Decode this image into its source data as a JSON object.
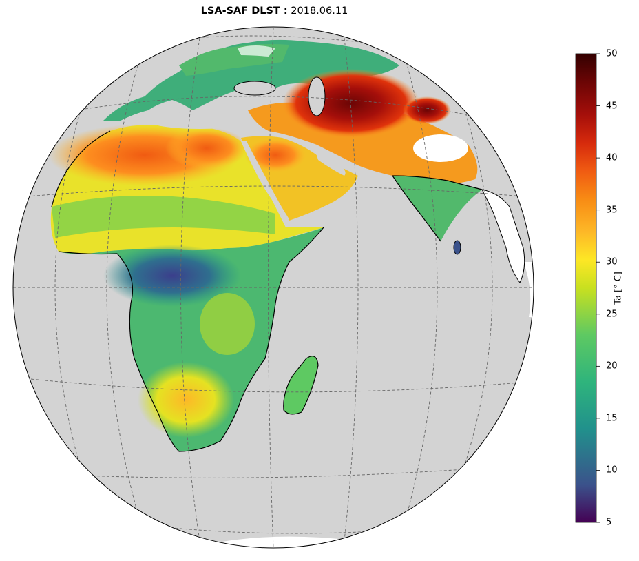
{
  "title": {
    "bold_part": "LSA-SAF DLST :",
    "date": "2018.06.11"
  },
  "colorbar": {
    "label": "Ta [° C]",
    "min": 5,
    "max": 50,
    "ticks": [
      "50",
      "45",
      "40",
      "35",
      "30",
      "25",
      "20",
      "15",
      "10",
      "5"
    ],
    "colormap_stops": [
      "#440154",
      "#3b528b",
      "#21918c",
      "#2fb47c",
      "#5ec962",
      "#c8e020",
      "#fde725",
      "#fdb827",
      "#f88b14",
      "#f05b12",
      "#d62a0c",
      "#a50f0a",
      "#6b0505",
      "#330000"
    ]
  },
  "map": {
    "projection": "near-sided perspective globe",
    "ocean_color": "#d3d3d3",
    "land_background_color": "#ffffff",
    "gridlines": "dashed grey"
  }
}
